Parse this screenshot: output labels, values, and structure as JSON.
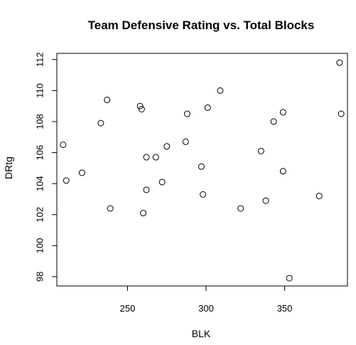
{
  "chart_data": {
    "type": "scatter",
    "title": "Team Defensive Rating vs. Total Blocks",
    "xlabel": "BLK",
    "ylabel": "DRtg",
    "xlim": [
      205,
      390
    ],
    "ylim": [
      97.4,
      112.4
    ],
    "xticks": [
      250,
      300,
      350
    ],
    "yticks": [
      98,
      100,
      102,
      104,
      106,
      108,
      110,
      112
    ],
    "grid": false,
    "points": [
      {
        "x": 209,
        "y": 106.5
      },
      {
        "x": 211,
        "y": 104.2
      },
      {
        "x": 221,
        "y": 104.7
      },
      {
        "x": 233,
        "y": 107.9
      },
      {
        "x": 237,
        "y": 109.4
      },
      {
        "x": 239,
        "y": 102.4
      },
      {
        "x": 258,
        "y": 109.0
      },
      {
        "x": 259,
        "y": 108.8
      },
      {
        "x": 260,
        "y": 102.1
      },
      {
        "x": 262,
        "y": 105.7
      },
      {
        "x": 262,
        "y": 103.6
      },
      {
        "x": 268,
        "y": 105.7
      },
      {
        "x": 272,
        "y": 104.1
      },
      {
        "x": 275,
        "y": 106.4
      },
      {
        "x": 287,
        "y": 106.7
      },
      {
        "x": 288,
        "y": 108.5
      },
      {
        "x": 297,
        "y": 105.1
      },
      {
        "x": 298,
        "y": 103.3
      },
      {
        "x": 301,
        "y": 108.9
      },
      {
        "x": 309,
        "y": 110.0
      },
      {
        "x": 322,
        "y": 102.4
      },
      {
        "x": 335,
        "y": 106.1
      },
      {
        "x": 338,
        "y": 102.9
      },
      {
        "x": 343,
        "y": 108.0
      },
      {
        "x": 349,
        "y": 108.6
      },
      {
        "x": 349,
        "y": 104.8
      },
      {
        "x": 353,
        "y": 97.9
      },
      {
        "x": 372,
        "y": 103.2
      },
      {
        "x": 385,
        "y": 111.8
      },
      {
        "x": 386,
        "y": 108.5
      }
    ]
  }
}
